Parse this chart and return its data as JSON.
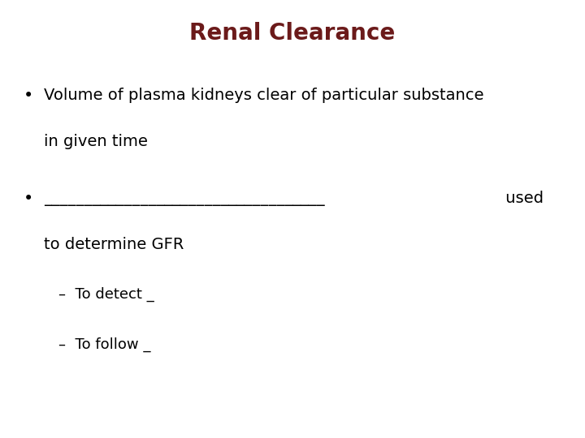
{
  "title": "Renal Clearance",
  "title_color": "#6B1A1A",
  "title_fontsize": 20,
  "background_color": "#ffffff",
  "text_color": "#000000",
  "bullet1_line1": "Volume of plasma kidneys clear of particular substance",
  "bullet1_line2": "in given time",
  "bullet2_underline": "___________________________________",
  "bullet2_used": " used",
  "bullet2_line2": "to determine GFR",
  "sub1": "–  To detect _",
  "sub2": "–  To follow _",
  "fontsize": 14,
  "sub_fontsize": 13
}
